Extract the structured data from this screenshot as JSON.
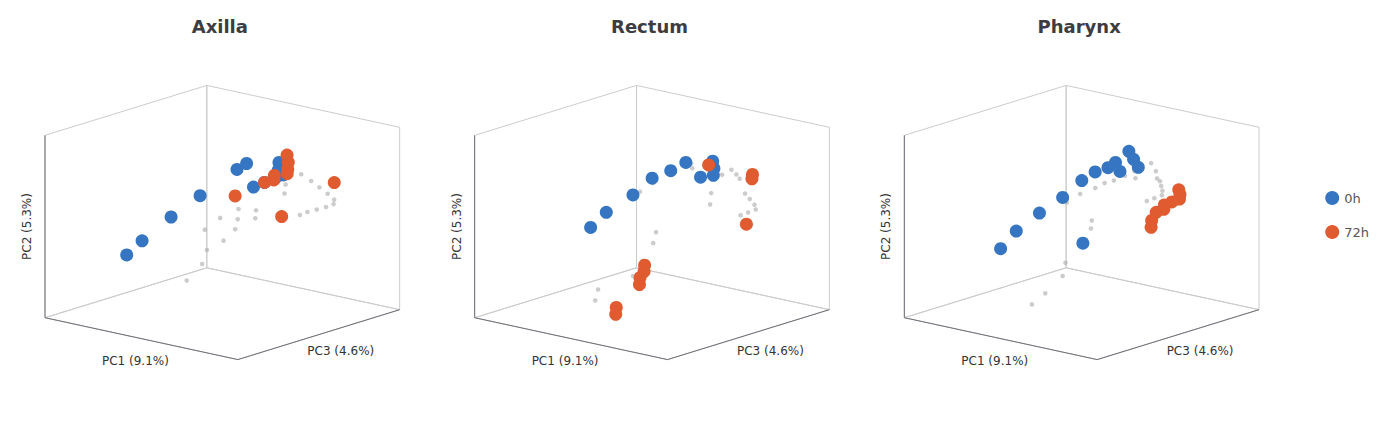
{
  "chart_data": [
    {
      "type": "scatter",
      "title": "Axilla",
      "x_label": "PC1 (9.1%)",
      "y_label": "PC3 (4.6%)",
      "z_label": "PC2 (5.3%)",
      "xlim": [
        -0.5,
        0.6
      ],
      "ylim": [
        -0.5,
        0.3
      ],
      "zlim": [
        -0.45,
        0.3
      ],
      "tick_labels": false,
      "grid": false,
      "legend": "right",
      "series": [
        {
          "color": "#AAAAAA",
          "values": [
            [
              0.2,
              0.16,
              0.08
            ],
            [
              0.28,
              0.14,
              0.07
            ],
            [
              0.35,
              0.12,
              0.06
            ],
            [
              0.42,
              0.1,
              0.05
            ],
            [
              0.48,
              0.08,
              0.04
            ],
            [
              0.5,
              0.06,
              0.03
            ],
            [
              0.48,
              0.04,
              0.02
            ],
            [
              0.45,
              0.02,
              0.01
            ],
            [
              0.42,
              0.0,
              0.0
            ],
            [
              0.4,
              -0.02,
              -0.01
            ],
            [
              0.18,
              0.1,
              0.05
            ],
            [
              0.22,
              0.06,
              0.03
            ],
            [
              0.15,
              -0.02,
              -0.03
            ],
            [
              0.18,
              -0.05,
              -0.05
            ],
            [
              0.05,
              -0.02,
              -0.04
            ],
            [
              0.08,
              -0.05,
              -0.07
            ],
            [
              0.1,
              -0.08,
              -0.1
            ],
            [
              0.08,
              -0.12,
              -0.14
            ],
            [
              -0.02,
              -0.05,
              -0.08
            ],
            [
              -0.05,
              -0.1,
              -0.12
            ],
            [
              0.02,
              -0.15,
              -0.18
            ],
            [
              0.05,
              -0.2,
              -0.22
            ],
            [
              0.02,
              -0.25,
              -0.28
            ]
          ]
        },
        {
          "name": "0h",
          "color": "#3575C2",
          "values": [
            [
              0.05,
              0.18,
              0.1
            ],
            [
              0.08,
              0.15,
              0.08
            ],
            [
              0.1,
              0.12,
              0.06
            ],
            [
              0.06,
              0.1,
              0.04
            ],
            [
              -0.1,
              0.15,
              0.08
            ],
            [
              -0.12,
              0.12,
              0.06
            ],
            [
              -0.25,
              0.05,
              -0.05
            ],
            [
              -0.3,
              -0.05,
              -0.12
            ],
            [
              -0.35,
              -0.15,
              -0.2
            ],
            [
              -0.38,
              -0.2,
              -0.25
            ],
            [
              0.12,
              0.14,
              0.07
            ],
            [
              0.02,
              0.08,
              0.02
            ]
          ]
        },
        {
          "name": "72h",
          "color": "#E05B30",
          "values": [
            [
              0.05,
              0.22,
              0.12
            ],
            [
              0.08,
              0.2,
              0.1
            ],
            [
              0.1,
              0.18,
              0.08
            ],
            [
              0.12,
              0.16,
              0.07
            ],
            [
              0.07,
              0.14,
              0.06
            ],
            [
              0.09,
              0.12,
              0.05
            ],
            [
              0.06,
              0.1,
              0.04
            ],
            [
              0.4,
              0.15,
              0.08
            ],
            [
              0.25,
              0.02,
              -0.05
            ],
            [
              -0.05,
              0.05,
              -0.02
            ]
          ]
        }
      ]
    },
    {
      "type": "scatter",
      "title": "Rectum",
      "x_label": "PC1 (9.1%)",
      "y_label": "PC3 (4.6%)",
      "z_label": "PC2 (5.3%)",
      "xlim": [
        -0.5,
        0.6
      ],
      "ylim": [
        -0.5,
        0.3
      ],
      "zlim": [
        -0.45,
        0.3
      ],
      "tick_labels": false,
      "grid": false,
      "legend": "right",
      "series": [
        {
          "color": "#AAAAAA",
          "values": [
            [
              0.18,
              0.18,
              0.09
            ],
            [
              0.22,
              0.17,
              0.08
            ],
            [
              0.25,
              0.16,
              0.07
            ],
            [
              0.15,
              0.16,
              0.07
            ],
            [
              0.12,
              0.14,
              0.06
            ],
            [
              -0.05,
              0.18,
              0.08
            ],
            [
              -0.02,
              0.16,
              0.07
            ],
            [
              -0.15,
              0.08,
              0.01
            ],
            [
              -0.18,
              0.04,
              -0.02
            ],
            [
              0.18,
              0.08,
              0.02
            ],
            [
              0.22,
              0.04,
              -0.01
            ],
            [
              0.35,
              0.1,
              0.04
            ],
            [
              0.4,
              0.08,
              0.03
            ],
            [
              0.45,
              0.06,
              0.02
            ],
            [
              0.48,
              0.04,
              0.01
            ],
            [
              0.46,
              0.02,
              0.0
            ],
            [
              0.44,
              0.0,
              -0.01
            ],
            [
              0.05,
              -0.08,
              -0.12
            ],
            [
              0.08,
              -0.12,
              -0.15
            ],
            [
              0.08,
              -0.22,
              -0.26
            ],
            [
              -0.05,
              -0.28,
              -0.32
            ],
            [
              -0.02,
              -0.32,
              -0.35
            ]
          ]
        },
        {
          "name": "0h",
          "color": "#3575C2",
          "values": [
            [
              0.05,
              0.2,
              0.1
            ],
            [
              0.08,
              0.18,
              0.08
            ],
            [
              0.1,
              0.16,
              0.06
            ],
            [
              0.05,
              0.14,
              0.05
            ],
            [
              -0.08,
              0.18,
              0.08
            ],
            [
              -0.12,
              0.14,
              0.05
            ],
            [
              -0.18,
              0.1,
              0.02
            ],
            [
              -0.22,
              0.04,
              -0.04
            ],
            [
              -0.28,
              -0.04,
              -0.1
            ],
            [
              -0.3,
              -0.1,
              -0.15
            ]
          ]
        },
        {
          "name": "72h",
          "color": "#E05B30",
          "values": [
            [
              0.05,
              0.18,
              0.09
            ],
            [
              0.3,
              0.18,
              0.09
            ],
            [
              0.32,
              0.16,
              0.08
            ],
            [
              0.45,
              0.02,
              -0.05
            ],
            [
              0.1,
              -0.18,
              -0.22
            ],
            [
              0.12,
              -0.2,
              -0.24
            ],
            [
              0.12,
              -0.22,
              -0.26
            ],
            [
              0.14,
              -0.24,
              -0.28
            ],
            [
              0.1,
              -0.32,
              -0.36
            ],
            [
              0.12,
              -0.34,
              -0.38
            ]
          ]
        }
      ]
    },
    {
      "type": "scatter",
      "title": "Pharynx",
      "x_label": "PC1 (9.1%)",
      "y_label": "PC3 (4.6%)",
      "z_label": "PC2 (5.3%)",
      "xlim": [
        -0.5,
        0.6
      ],
      "ylim": [
        -0.5,
        0.3
      ],
      "zlim": [
        -0.45,
        0.3
      ],
      "tick_labels": false,
      "grid": false,
      "legend": "right",
      "series": [
        {
          "color": "#AAAAAA",
          "values": [
            [
              0.1,
              0.2,
              0.1
            ],
            [
              0.15,
              0.18,
              0.08
            ],
            [
              0.18,
              0.16,
              0.06
            ],
            [
              0.05,
              0.16,
              0.07
            ],
            [
              0.08,
              0.14,
              0.05
            ],
            [
              0.02,
              0.14,
              0.05
            ],
            [
              -0.02,
              0.12,
              0.03
            ],
            [
              -0.05,
              0.1,
              0.02
            ],
            [
              -0.08,
              0.08,
              0.0
            ],
            [
              0.22,
              0.14,
              0.06
            ],
            [
              0.25,
              0.12,
              0.05
            ],
            [
              0.28,
              0.1,
              0.04
            ],
            [
              0.3,
              0.08,
              0.03
            ],
            [
              0.28,
              0.06,
              0.02
            ],
            [
              0.26,
              0.04,
              0.01
            ],
            [
              -0.12,
              0.04,
              -0.02
            ],
            [
              -0.15,
              0.0,
              -0.05
            ],
            [
              0.05,
              -0.05,
              -0.08
            ],
            [
              0.08,
              -0.08,
              -0.1
            ],
            [
              0.05,
              -0.18,
              -0.22
            ],
            [
              0.08,
              -0.22,
              -0.26
            ],
            [
              0.05,
              -0.28,
              -0.32
            ],
            [
              0.02,
              -0.32,
              -0.36
            ]
          ]
        },
        {
          "name": "0h",
          "color": "#3575C2",
          "values": [
            [
              -0.05,
              0.22,
              0.12
            ],
            [
              0.0,
              0.2,
              0.1
            ],
            [
              0.05,
              0.18,
              0.08
            ],
            [
              -0.08,
              0.18,
              0.08
            ],
            [
              -0.1,
              0.16,
              0.06
            ],
            [
              -0.15,
              0.14,
              0.04
            ],
            [
              -0.18,
              0.1,
              0.01
            ],
            [
              -0.22,
              0.04,
              -0.05
            ],
            [
              -0.26,
              -0.04,
              -0.1
            ],
            [
              -0.3,
              -0.12,
              -0.16
            ],
            [
              -0.32,
              -0.18,
              -0.22
            ],
            [
              0.08,
              -0.12,
              -0.15
            ],
            [
              -0.02,
              0.15,
              0.06
            ]
          ]
        },
        {
          "name": "72h",
          "color": "#E05B30",
          "values": [
            [
              0.35,
              0.12,
              0.05
            ],
            [
              0.38,
              0.1,
              0.04
            ],
            [
              0.4,
              0.08,
              0.03
            ],
            [
              0.38,
              0.06,
              0.02
            ],
            [
              0.36,
              0.04,
              0.01
            ],
            [
              0.38,
              0.02,
              0.0
            ],
            [
              0.36,
              0.0,
              -0.01
            ],
            [
              0.38,
              -0.04,
              -0.03
            ],
            [
              0.4,
              -0.06,
              -0.05
            ]
          ]
        }
      ]
    }
  ]
}
